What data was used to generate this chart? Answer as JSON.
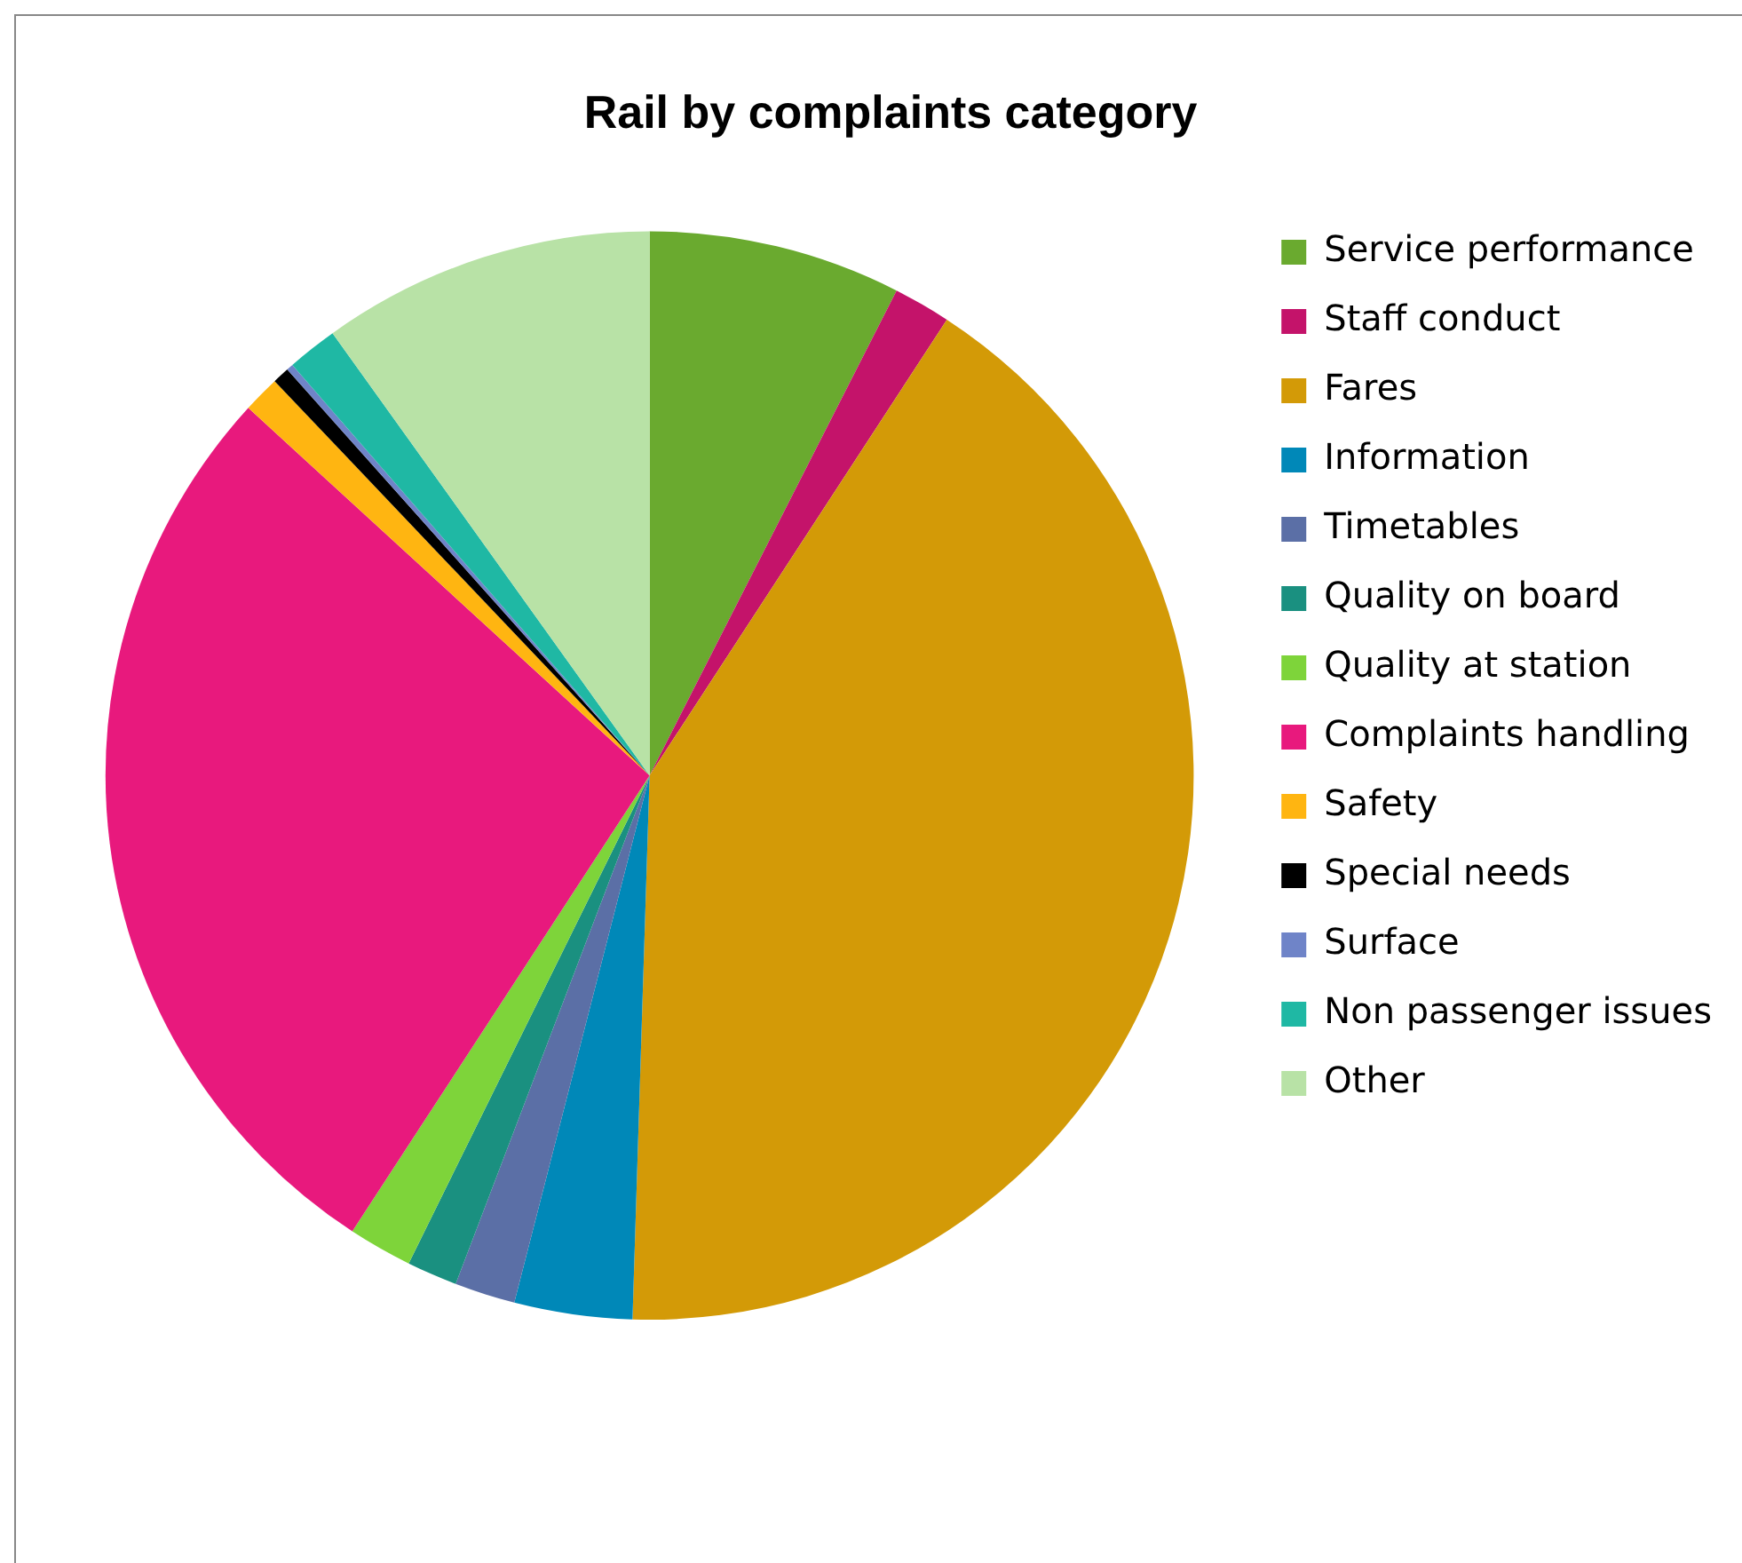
{
  "chart_data": {
    "type": "pie",
    "title": "Rail by complaints category",
    "categories": [
      "Service performance",
      "Staff conduct",
      "Fares",
      "Information",
      "Timetables",
      "Quality on board",
      "Quality at station",
      "Complaints handling",
      "Safety",
      "Special needs",
      "Surface",
      "Non passenger issues",
      "Other"
    ],
    "values": [
      7.5,
      1.7,
      41.3,
      3.5,
      1.8,
      1.5,
      1.9,
      27.6,
      1.1,
      0.5,
      0.2,
      1.5,
      9.9
    ],
    "colors": [
      "#6aaa2f",
      "#c4136a",
      "#d39a07",
      "#0088b8",
      "#5b6fa6",
      "#1a9080",
      "#7ed43a",
      "#e8197d",
      "#ffb511",
      "#000000",
      "#6f84c8",
      "#1fb8a4",
      "#b8e2a6"
    ],
    "legend": "right"
  }
}
